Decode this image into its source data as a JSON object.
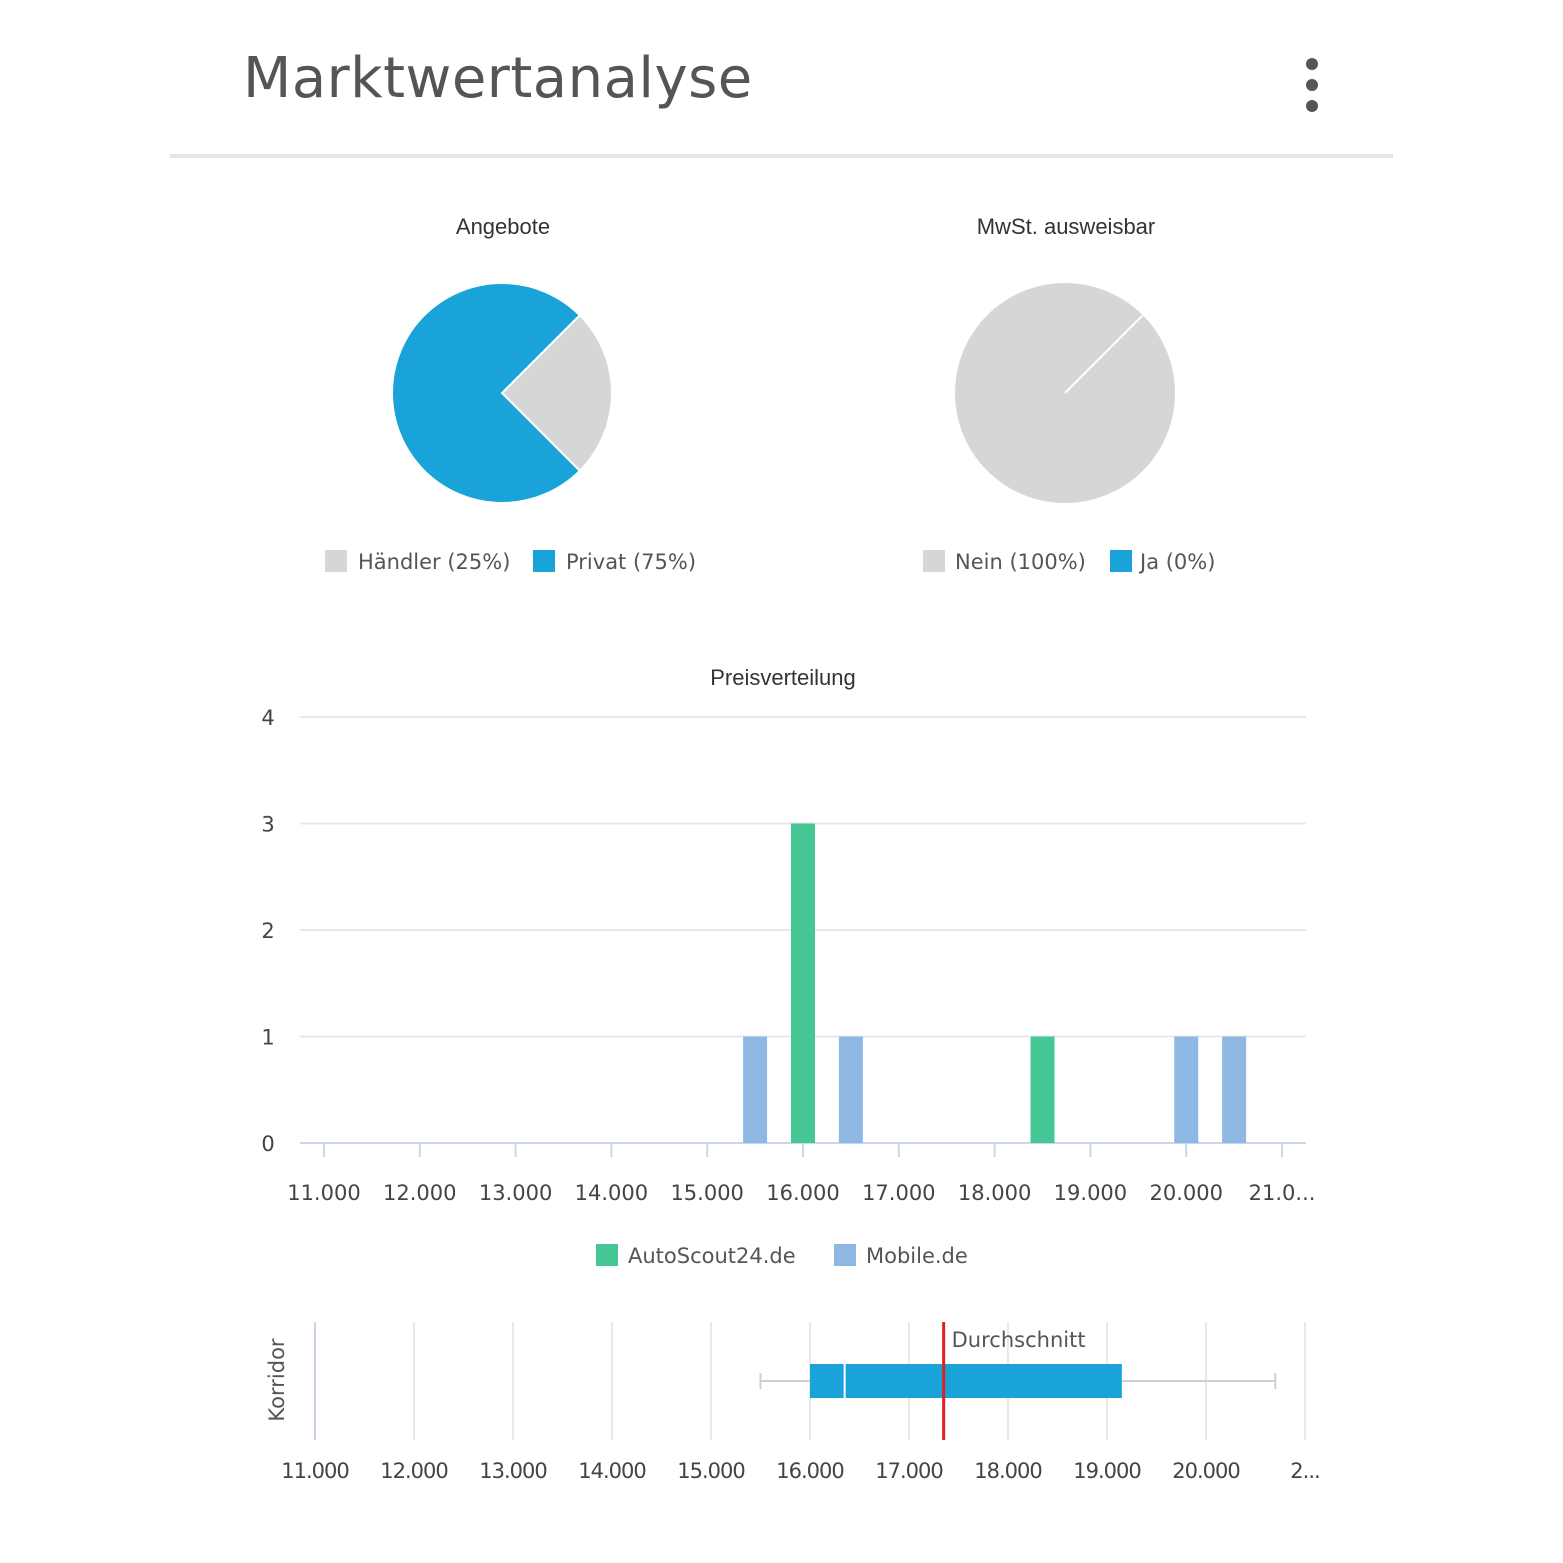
{
  "header": {
    "title": "Marktwertanalyse",
    "menu_icon": "more-vertical-icon"
  },
  "colors": {
    "blue": "#1aa3d9",
    "grey": "#d6d6d6",
    "green": "#44c695",
    "light_blue": "#8fb7e4",
    "red": "#e02020"
  },
  "chart_data": [
    {
      "type": "pie",
      "title": "Angebote",
      "slices": [
        {
          "label": "Händler (25%)",
          "value": 25,
          "color": "#d6d6d6"
        },
        {
          "label": "Privat (75%)",
          "value": 75,
          "color": "#1aa3d9"
        }
      ],
      "legend": "bottom"
    },
    {
      "type": "pie",
      "title": "MwSt. ausweisbar",
      "slices": [
        {
          "label": "Nein (100%)",
          "value": 100,
          "color": "#d6d6d6"
        },
        {
          "label": "Ja (0%)",
          "value": 0,
          "color": "#1aa3d9"
        }
      ],
      "legend": "bottom"
    },
    {
      "type": "bar",
      "title": "Preisverteilung",
      "x_ticks": [
        "11.000",
        "12.000",
        "13.000",
        "14.000",
        "15.000",
        "16.000",
        "17.000",
        "18.000",
        "19.000",
        "20.000",
        "21.0..."
      ],
      "xlim": [
        10750,
        21250
      ],
      "ylim": [
        0,
        4
      ],
      "y_ticks": [
        "0",
        "1",
        "2",
        "3",
        "4"
      ],
      "grid": true,
      "legend": "bottom",
      "series": [
        {
          "name": "AutoScout24.de",
          "color": "#44c695",
          "points": [
            {
              "x": 16000,
              "y": 3
            },
            {
              "x": 18500,
              "y": 1
            }
          ]
        },
        {
          "name": "Mobile.de",
          "color": "#8fb7e4",
          "points": [
            {
              "x": 15500,
              "y": 1
            },
            {
              "x": 16500,
              "y": 1
            },
            {
              "x": 20000,
              "y": 1
            },
            {
              "x": 20500,
              "y": 1
            }
          ]
        }
      ]
    },
    {
      "type": "boxplot",
      "ylabel": "Korridor",
      "x_ticks": [
        "11.000",
        "12.000",
        "13.000",
        "14.000",
        "15.000",
        "16.000",
        "17.000",
        "18.000",
        "19.000",
        "20.000",
        "2..."
      ],
      "xlim": [
        11000,
        21000
      ],
      "box": {
        "whisker_low": 15500,
        "q1": 16000,
        "median": 16350,
        "q3": 19150,
        "whisker_high": 20700
      },
      "average": {
        "label": "Durchschnitt",
        "x": 17350
      }
    }
  ]
}
